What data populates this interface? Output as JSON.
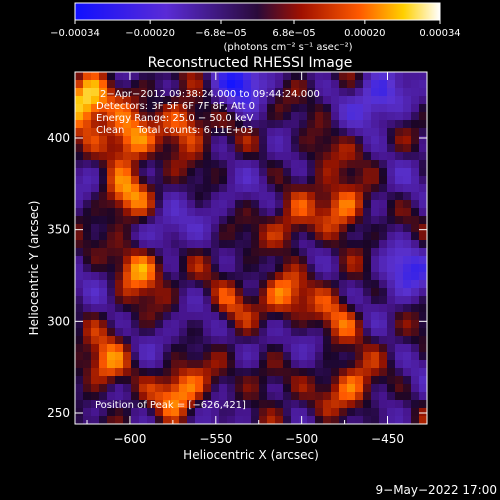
{
  "chart_data": {
    "type": "heatmap",
    "title": "Reconstructed RHESSI Image",
    "xlabel": "Heliocentric X (arcsec)",
    "ylabel": "Heliocentric Y (arcsec)",
    "xlim": [
      -632,
      -427
    ],
    "ylim": [
      244,
      436
    ],
    "x_ticks": [
      -600,
      -550,
      -500,
      -450
    ],
    "y_ticks": [
      250,
      300,
      350,
      400
    ],
    "x_tick_labels": [
      "−600",
      "−550",
      "−500",
      "−450"
    ],
    "y_tick_labels": [
      "250",
      "300",
      "350",
      "400"
    ],
    "colorbar": {
      "range": [
        -0.00034,
        0.00034
      ],
      "tick_labels": [
        "−0.00034",
        "−0.00020",
        "−6.8e−05",
        "6.8e−05",
        "0.00020",
        "0.00034"
      ],
      "tick_values": [
        -0.00034,
        -0.0002,
        -6.8e-05,
        6.8e-05,
        0.0002,
        0.00034
      ],
      "unit_label": "(photons cm⁻² s⁻¹ asec⁻²)"
    },
    "annotations": {
      "time": "2−Apr−2012 09:38:24.000 to 09:44:24.000",
      "detectors": "Detectors: 3F 5F 6F 7F 8F, Att 0",
      "energy": "Energy Range: 25.0 − 50.0 keV",
      "clean": "Clean    Total counts: 6.11E+03",
      "peak": "Position of Peak = [−626,421]"
    },
    "peak_position": [
      -626,
      421
    ],
    "bright_regions": [
      {
        "x": -626,
        "y": 421,
        "level": 1.0
      },
      {
        "x": -600,
        "y": 398,
        "level": 0.75
      },
      {
        "x": -568,
        "y": 408,
        "level": 0.65
      },
      {
        "x": -594,
        "y": 330,
        "level": 0.7
      },
      {
        "x": -603,
        "y": 370,
        "level": 0.5
      },
      {
        "x": -614,
        "y": 275,
        "level": 0.6
      },
      {
        "x": -570,
        "y": 262,
        "level": 0.6
      },
      {
        "x": -540,
        "y": 310,
        "level": 0.4
      },
      {
        "x": -512,
        "y": 315,
        "level": 0.55
      },
      {
        "x": -505,
        "y": 350,
        "level": 0.4
      },
      {
        "x": -475,
        "y": 362,
        "level": 0.65
      },
      {
        "x": -478,
        "y": 300,
        "level": 0.5
      },
      {
        "x": -470,
        "y": 262,
        "level": 0.5
      },
      {
        "x": -490,
        "y": 395,
        "level": 0.3
      },
      {
        "x": -520,
        "y": 270,
        "level": 0.4
      }
    ],
    "dark_regions": [
      {
        "x": -535,
        "y": 430,
        "level": -0.6
      },
      {
        "x": -455,
        "y": 420,
        "level": -0.5
      },
      {
        "x": -440,
        "y": 330,
        "level": -0.5
      },
      {
        "x": -580,
        "y": 350,
        "level": -0.3
      },
      {
        "x": -520,
        "y": 290,
        "level": -0.3
      }
    ]
  },
  "footer": {
    "date": "9−May−2022 17:00"
  }
}
